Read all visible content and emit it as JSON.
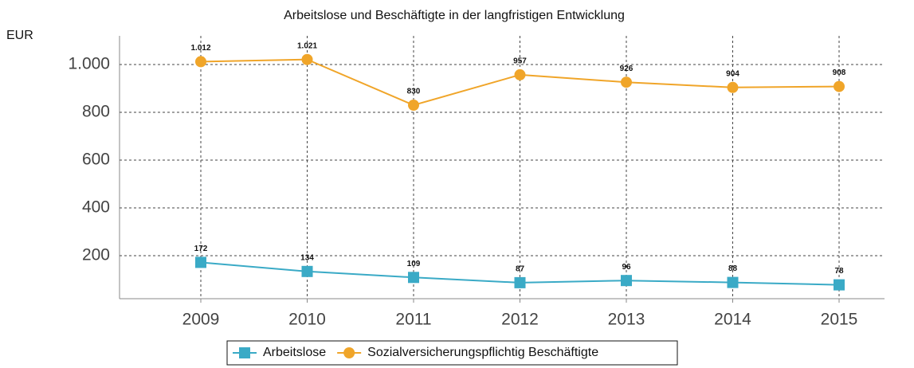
{
  "chart_data": {
    "type": "line",
    "title": "Arbeitslose und Beschäftigte in der langfristigen Entwicklung",
    "y_label": "EUR",
    "categories": [
      "2009",
      "2010",
      "2011",
      "2012",
      "2013",
      "2014",
      "2015"
    ],
    "series": [
      {
        "name": "Arbeitslose",
        "color": "#3aaac6",
        "marker": "square",
        "values": [
          172,
          134,
          109,
          87,
          96,
          88,
          78
        ]
      },
      {
        "name": "Sozialversicherungspflichtig Beschäftigte",
        "color": "#f0a529",
        "marker": "circle",
        "values": [
          1012,
          1021,
          830,
          957,
          926,
          904,
          908
        ],
        "value_labels": [
          "1.012",
          "1.021",
          "830",
          "957",
          "926",
          "904",
          "908"
        ]
      }
    ],
    "ylim": [
      20,
      1120
    ],
    "yticks": [
      200,
      400,
      600,
      800,
      {
        "value": 1000,
        "label": "1.000"
      }
    ],
    "grid": true,
    "legend": "bottom"
  }
}
